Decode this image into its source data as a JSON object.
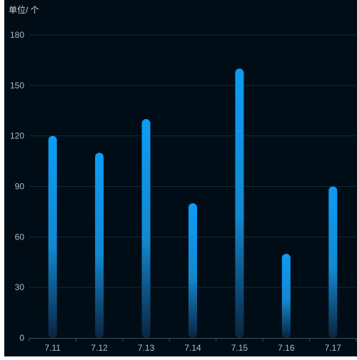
{
  "chart_data": {
    "type": "bar",
    "unit_label": "单位/ 个",
    "categories": [
      "7.11",
      "7.12",
      "7.13",
      "7.14",
      "7.15",
      "7.16",
      "7.17"
    ],
    "values": [
      120,
      110,
      130,
      80,
      160,
      50,
      90
    ],
    "ylim": [
      0,
      180
    ],
    "yticks": [
      0,
      30,
      60,
      90,
      120,
      150,
      180
    ],
    "grid": true,
    "legend": "none",
    "colors": {
      "background": "#010d16",
      "bar_top": "#0e9cf5",
      "bar_mid": "#1288d0",
      "bar_bottom": "#0a2440",
      "grid": "#12293a",
      "axis": "#3d4f5f",
      "tick_label": "#a9bccb",
      "unit_label": "#c6d3de"
    }
  }
}
